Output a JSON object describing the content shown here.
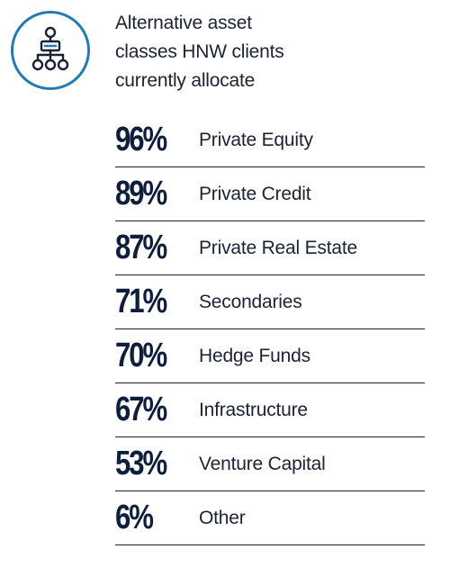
{
  "header": {
    "icon": "hierarchy-icon",
    "title": "Alternative asset\nclasses HNW clients\ncurrently allocate"
  },
  "colors": {
    "icon_accent": "#2679b5",
    "text_dark": "#0f1e3c",
    "divider": "#1b2333"
  },
  "chart_data": {
    "type": "table",
    "title": "Alternative asset classes HNW clients currently allocate",
    "unit": "%",
    "categories": [
      "Private Equity",
      "Private Credit",
      "Private Real Estate",
      "Secondaries",
      "Hedge Funds",
      "Infrastructure",
      "Venture Capital",
      "Other"
    ],
    "values": [
      96,
      89,
      87,
      71,
      70,
      67,
      53,
      6
    ],
    "rows": [
      {
        "pct": "96%",
        "label": "Private Equity"
      },
      {
        "pct": "89%",
        "label": "Private Credit"
      },
      {
        "pct": "87%",
        "label": "Private Real Estate"
      },
      {
        "pct": "71%",
        "label": "Secondaries"
      },
      {
        "pct": "70%",
        "label": "Hedge Funds"
      },
      {
        "pct": "67%",
        "label": "Infrastructure"
      },
      {
        "pct": "53%",
        "label": "Venture Capital"
      },
      {
        "pct": "6%",
        "label": "Other"
      }
    ]
  }
}
